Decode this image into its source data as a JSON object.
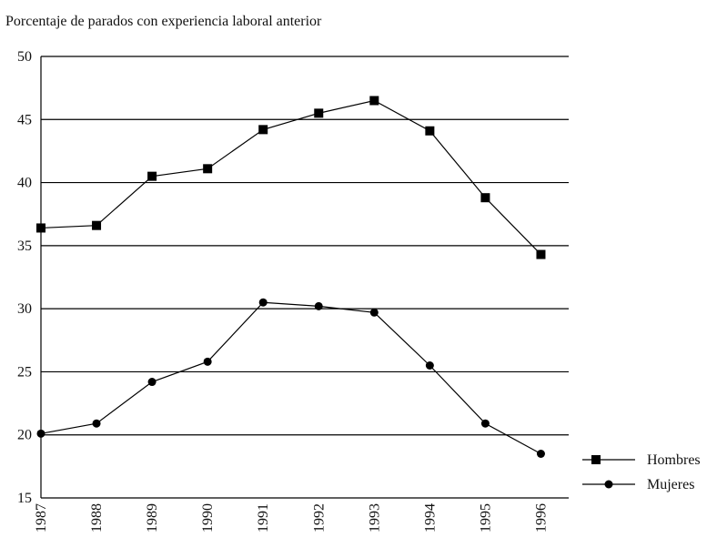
{
  "chart_data": {
    "type": "line",
    "title": "Porcentaje de parados con experiencia laboral anterior",
    "x": [
      1987,
      1988,
      1989,
      1990,
      1991,
      1992,
      1993,
      1994,
      1995,
      1996
    ],
    "series": [
      {
        "name": "Hombres",
        "color": "#000000",
        "marker": "square",
        "values": [
          36.4,
          36.6,
          40.5,
          41.1,
          44.2,
          45.5,
          46.5,
          44.1,
          38.8,
          34.3
        ]
      },
      {
        "name": "Mujeres",
        "color": "#000000",
        "marker": "circle",
        "values": [
          20.1,
          20.9,
          24.2,
          25.8,
          30.5,
          30.2,
          29.7,
          25.5,
          20.9,
          18.5
        ]
      }
    ],
    "xlim": [
      1987,
      1996.5
    ],
    "xticks": [
      1987,
      1988,
      1989,
      1990,
      1991,
      1992,
      1993,
      1994,
      1995,
      1996
    ],
    "ylim": [
      15,
      50
    ],
    "yticks": [
      15,
      20,
      25,
      30,
      35,
      40,
      45,
      50
    ],
    "grid": true,
    "legend": "right"
  }
}
